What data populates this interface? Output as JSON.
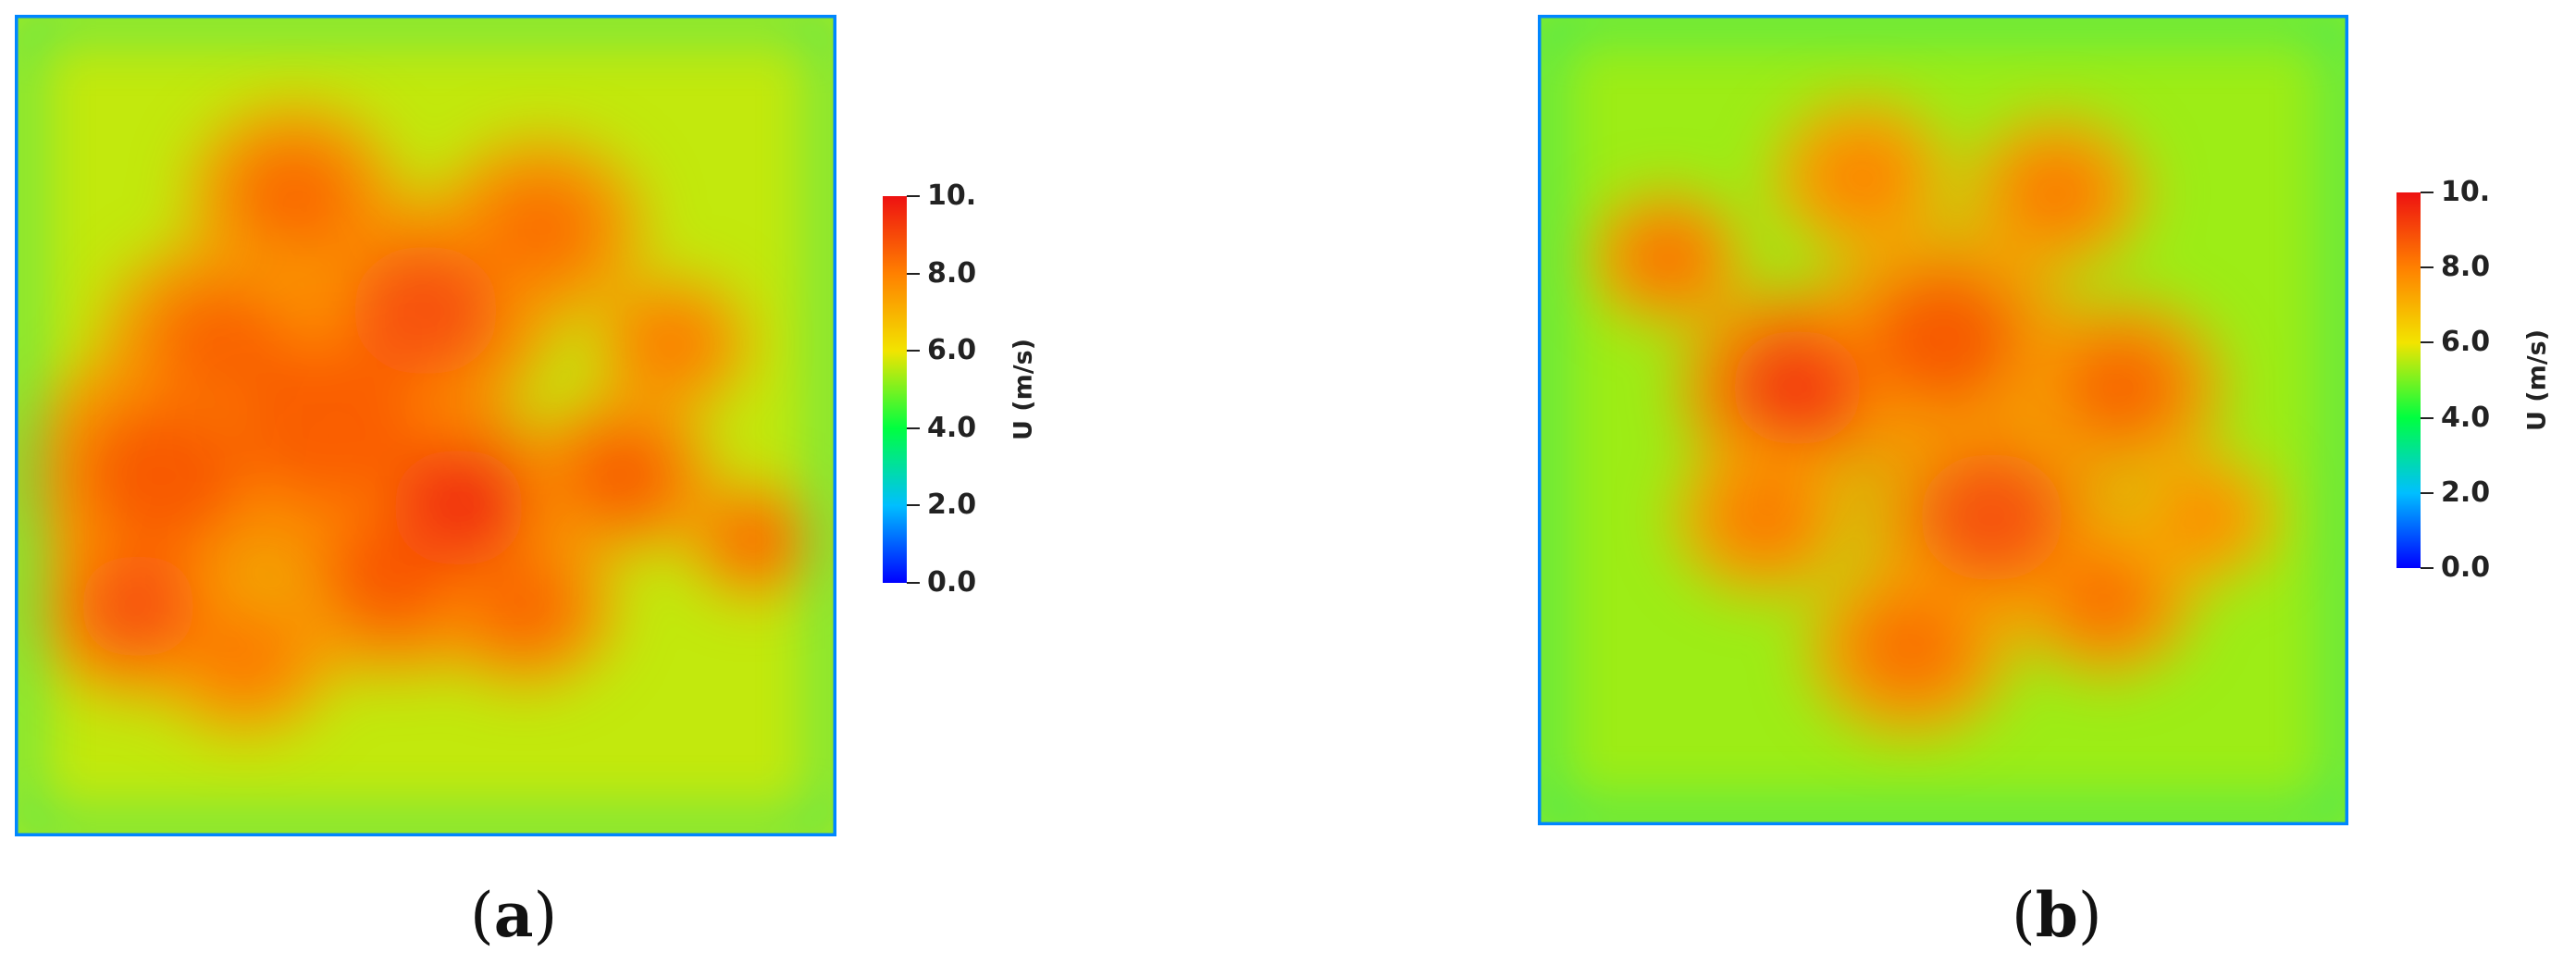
{
  "chart_data": [
    {
      "type": "heatmap",
      "panel_label": "a",
      "colorbar": {
        "title": "U (m/s)",
        "range": [
          0,
          10
        ],
        "ticks": [
          0,
          2,
          4,
          6,
          8,
          10
        ],
        "tick_labels": [
          "0.0",
          "2.0",
          "4.0",
          "6.0",
          "8.0",
          "10."
        ],
        "colors": [
          "#0000ff",
          "#00bfff",
          "#00ff40",
          "#f2e400",
          "#ff8000",
          "#ee1111"
        ]
      },
      "field": {
        "background_value": 5.6,
        "edge_value": 3.2,
        "hotspots": [
          {
            "x": 0.18,
            "y": 0.56,
            "value": 8.8,
            "spread": 0.11
          },
          {
            "x": 0.15,
            "y": 0.72,
            "value": 8.9,
            "spread": 0.08
          },
          {
            "x": 0.25,
            "y": 0.4,
            "value": 8.6,
            "spread": 0.09
          },
          {
            "x": 0.34,
            "y": 0.22,
            "value": 8.5,
            "spread": 0.08
          },
          {
            "x": 0.38,
            "y": 0.5,
            "value": 8.7,
            "spread": 0.12
          },
          {
            "x": 0.5,
            "y": 0.36,
            "value": 8.9,
            "spread": 0.1
          },
          {
            "x": 0.54,
            "y": 0.6,
            "value": 9.6,
            "spread": 0.09
          },
          {
            "x": 0.46,
            "y": 0.68,
            "value": 8.8,
            "spread": 0.09
          },
          {
            "x": 0.64,
            "y": 0.26,
            "value": 8.4,
            "spread": 0.08
          },
          {
            "x": 0.62,
            "y": 0.72,
            "value": 8.6,
            "spread": 0.07
          },
          {
            "x": 0.74,
            "y": 0.56,
            "value": 8.8,
            "spread": 0.07
          },
          {
            "x": 0.8,
            "y": 0.4,
            "value": 8.2,
            "spread": 0.06
          },
          {
            "x": 0.9,
            "y": 0.64,
            "value": 8.6,
            "spread": 0.05
          },
          {
            "x": 0.28,
            "y": 0.78,
            "value": 8.2,
            "spread": 0.07
          }
        ]
      }
    },
    {
      "type": "heatmap",
      "panel_label": "b",
      "colorbar": {
        "title": "U (m/s)",
        "range": [
          0,
          10
        ],
        "ticks": [
          0,
          2,
          4,
          6,
          8,
          10
        ],
        "tick_labels": [
          "0.0",
          "2.0",
          "4.0",
          "6.0",
          "8.0",
          "10."
        ],
        "colors": [
          "#0000ff",
          "#00bfff",
          "#00ff40",
          "#f2e400",
          "#ff8000",
          "#ee1111"
        ]
      },
      "field": {
        "background_value": 5.3,
        "edge_value": 3.2,
        "hotspots": [
          {
            "x": 0.16,
            "y": 0.3,
            "value": 8.4,
            "spread": 0.06
          },
          {
            "x": 0.32,
            "y": 0.46,
            "value": 9.3,
            "spread": 0.09
          },
          {
            "x": 0.28,
            "y": 0.62,
            "value": 8.2,
            "spread": 0.07
          },
          {
            "x": 0.5,
            "y": 0.4,
            "value": 8.8,
            "spread": 0.1
          },
          {
            "x": 0.56,
            "y": 0.62,
            "value": 8.9,
            "spread": 0.1
          },
          {
            "x": 0.46,
            "y": 0.78,
            "value": 8.4,
            "spread": 0.08
          },
          {
            "x": 0.64,
            "y": 0.22,
            "value": 8.2,
            "spread": 0.07
          },
          {
            "x": 0.72,
            "y": 0.46,
            "value": 8.6,
            "spread": 0.08
          },
          {
            "x": 0.7,
            "y": 0.72,
            "value": 8.4,
            "spread": 0.07
          },
          {
            "x": 0.4,
            "y": 0.2,
            "value": 8.0,
            "spread": 0.07
          },
          {
            "x": 0.82,
            "y": 0.62,
            "value": 7.8,
            "spread": 0.06
          }
        ]
      }
    }
  ]
}
